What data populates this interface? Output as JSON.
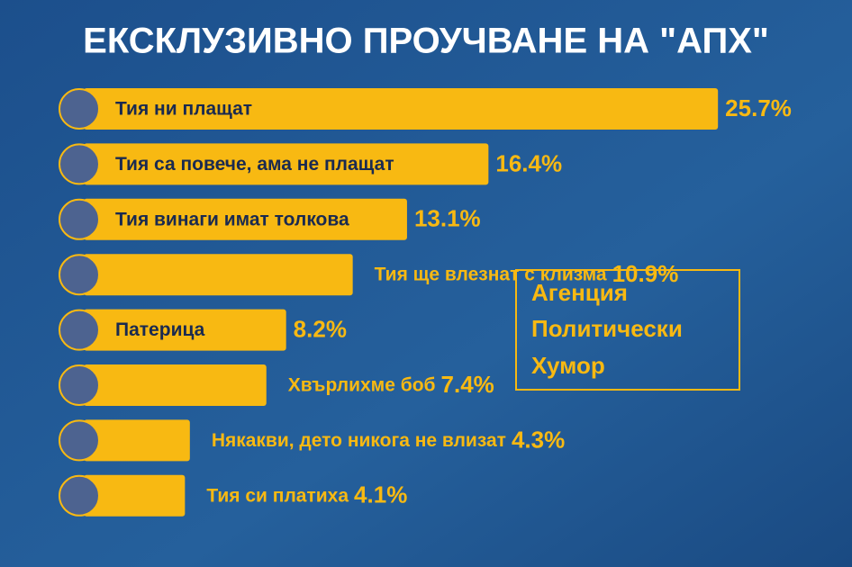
{
  "chart_data": {
    "type": "bar",
    "orientation": "horizontal",
    "title": "ЕКСКЛУЗИВНО ПРОУЧВАНЕ НА \"АПХ\"",
    "categories": [
      "Тия ни плащат",
      "Тия са повече, ама не плащат",
      "Тия винаги имат толкова",
      "Тия ще влезнат с клизма",
      "Патерица",
      "Хвърлихме боб",
      "Някакви, дето никога не влизат",
      "Тия си платиха"
    ],
    "values": [
      25.7,
      16.4,
      13.1,
      10.9,
      8.2,
      7.4,
      4.3,
      4.1
    ],
    "value_labels": [
      "25.7%",
      "16.4%",
      "13.1%",
      "10.9%",
      "8.2%",
      "7.4%",
      "4.3%",
      "4.1%"
    ],
    "color": "#f8b912",
    "annotation": [
      "Агенция",
      "Политически",
      "Хумор"
    ]
  }
}
